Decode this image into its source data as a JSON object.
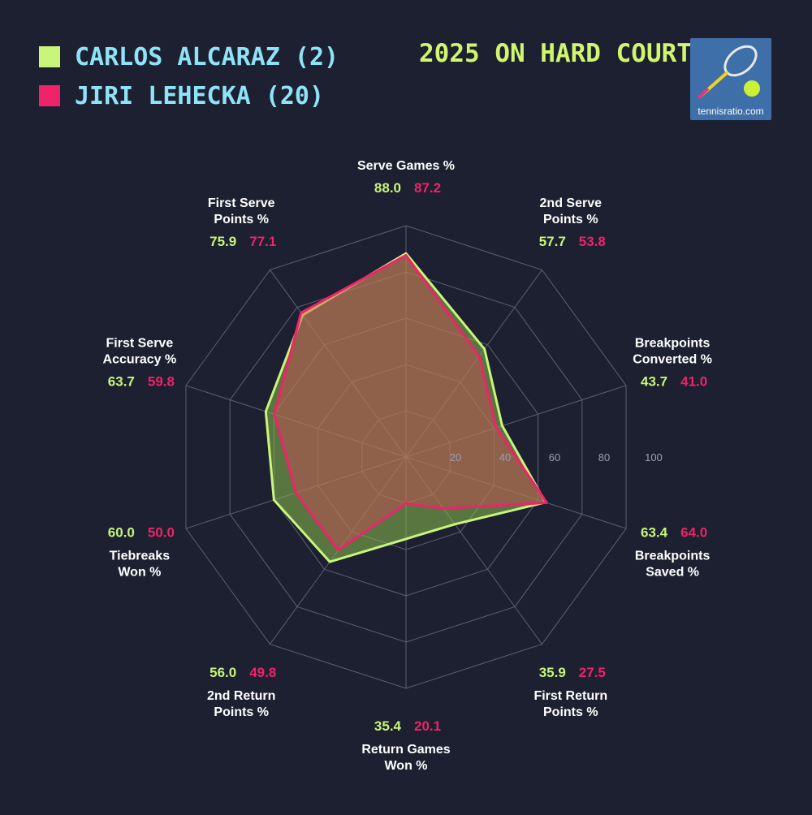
{
  "legend": {
    "items": [
      {
        "label": "CARLOS ALCARAZ (2)",
        "color": "#c8f57a"
      },
      {
        "label": "JIRI LEHECKA (20)",
        "color": "#f0226a"
      }
    ]
  },
  "headline": "2025 ON HARD COURTS",
  "logo": {
    "text": "tennisratio.com",
    "icon": "tennis-racket-ball-icon"
  },
  "chart_data": {
    "type": "radar",
    "axis_ticks": [
      "20",
      "40",
      "60",
      "80",
      "100"
    ],
    "range": [
      0,
      100
    ],
    "categories": [
      {
        "lines": [
          "Serve Games %"
        ]
      },
      {
        "lines": [
          "2nd Serve",
          "Points %"
        ]
      },
      {
        "lines": [
          "Breakpoints",
          "Converted %"
        ]
      },
      {
        "lines": [
          "Breakpoints",
          "Saved %"
        ]
      },
      {
        "lines": [
          "First Return",
          "Points %"
        ]
      },
      {
        "lines": [
          "Return Games",
          "Won %"
        ]
      },
      {
        "lines": [
          "2nd Return",
          "Points %"
        ]
      },
      {
        "lines": [
          "Tiebreaks",
          "Won %"
        ]
      },
      {
        "lines": [
          "First Serve",
          "Accuracy %"
        ]
      },
      {
        "lines": [
          "First Serve",
          "Points %"
        ]
      }
    ],
    "series": [
      {
        "name": "CARLOS ALCARAZ (2)",
        "color": "#c8f57a",
        "values": [
          88.0,
          57.7,
          43.7,
          63.4,
          35.9,
          35.4,
          56.0,
          60.0,
          63.7,
          75.9
        ],
        "labels": [
          "88.0",
          "57.7",
          "43.7",
          "63.4",
          "35.9",
          "35.4",
          "56.0",
          "60.0",
          "63.7",
          "75.9"
        ]
      },
      {
        "name": "JIRI LEHECKA (20)",
        "color": "#f0226a",
        "values": [
          87.2,
          53.8,
          41.0,
          64.0,
          27.5,
          20.1,
          49.8,
          50.0,
          59.8,
          77.1
        ],
        "labels": [
          "87.2",
          "53.8",
          "41.0",
          "64.0",
          "27.5",
          "20.1",
          "49.8",
          "50.0",
          "59.8",
          "77.1"
        ]
      }
    ]
  }
}
